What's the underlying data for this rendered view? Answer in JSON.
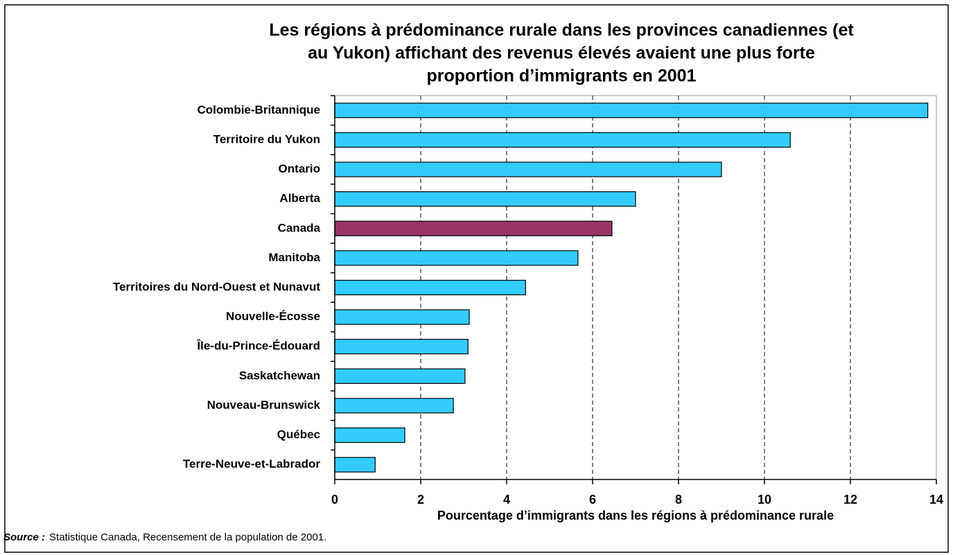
{
  "chart_data": {
    "type": "barh",
    "title": [
      "Les régions à prédominance rurale dans les provinces canadiennes (et",
      "au Yukon) affichant des revenus élevés avaient une plus forte",
      "proportion d’immigrants en 2001"
    ],
    "categories": [
      "Colombie-Britannique",
      "Territoire du Yukon",
      "Ontario",
      "Alberta",
      "Canada",
      "Manitoba",
      "Territoires du Nord-Ouest et Nunavut",
      "Nouvelle-Écosse",
      "Île-du-Prince-Édouard",
      "Saskatchewan",
      "Nouveau-Brunswick",
      "Québec",
      "Terre-Neuve-et-Labrador"
    ],
    "values": [
      13.8,
      10.6,
      9.0,
      7.0,
      6.45,
      5.66,
      4.44,
      3.13,
      3.1,
      3.03,
      2.76,
      1.63,
      0.94
    ],
    "colors": [
      "#33ccff",
      "#33ccff",
      "#33ccff",
      "#33ccff",
      "#993366",
      "#33ccff",
      "#33ccff",
      "#33ccff",
      "#33ccff",
      "#33ccff",
      "#33ccff",
      "#33ccff",
      "#33ccff"
    ],
    "xlim": [
      0,
      14
    ],
    "xticks": [
      0,
      2,
      4,
      6,
      8,
      10,
      12,
      14
    ],
    "grid": true,
    "xlabel": "Pourcentage d’immigrants dans les régions à prédominance rurale",
    "source_label": "Source :",
    "source_text": "Statistique Canada, Recensement de la population de 2001."
  }
}
